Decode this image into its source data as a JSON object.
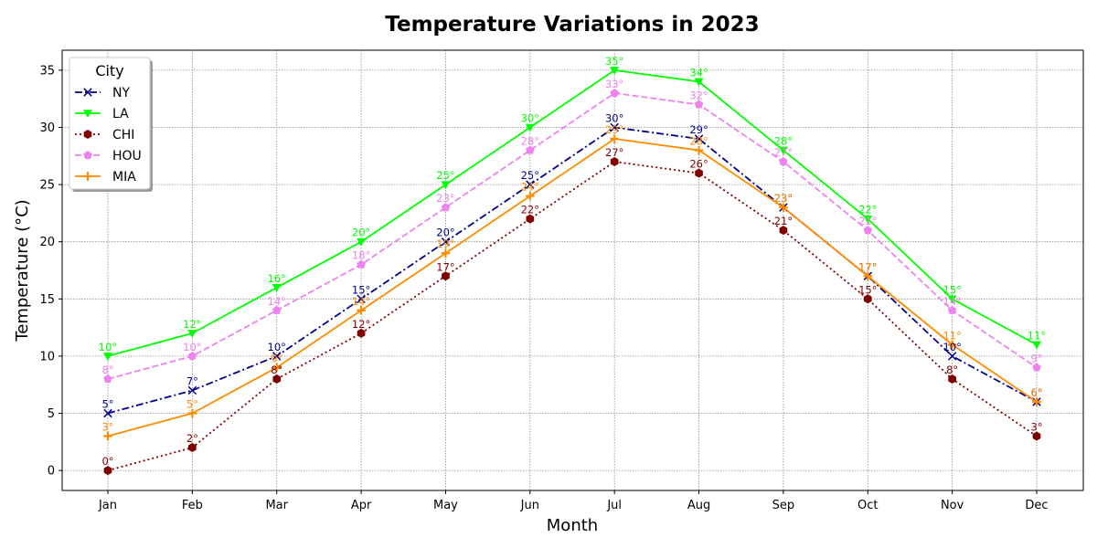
{
  "chart_data": {
    "type": "line",
    "title": "Temperature Variations in 2023",
    "xlabel": "Month",
    "ylabel": "Temperature (°C)",
    "categories": [
      "Jan",
      "Feb",
      "Mar",
      "Apr",
      "May",
      "Jun",
      "Jul",
      "Aug",
      "Sep",
      "Oct",
      "Nov",
      "Dec"
    ],
    "ylim": [
      -1.75,
      36.75
    ],
    "yticks": [
      0,
      5,
      10,
      15,
      20,
      25,
      30,
      35
    ],
    "grid": true,
    "legend": {
      "title": "City",
      "placement": "top-left"
    },
    "label_suffix": "°",
    "series": [
      {
        "name": "NY",
        "color": "#00008b",
        "dash": "dashdot",
        "marker": "x",
        "values": [
          5,
          7,
          10,
          15,
          20,
          25,
          30,
          29,
          23,
          17,
          10,
          6
        ]
      },
      {
        "name": "LA",
        "color": "#00ff00",
        "dash": "solid",
        "marker": "triangle-down",
        "values": [
          10,
          12,
          16,
          20,
          25,
          30,
          35,
          34,
          28,
          22,
          15,
          11
        ]
      },
      {
        "name": "CHI",
        "color": "#800000",
        "dash": "dotted",
        "marker": "hexagon",
        "values": [
          0,
          2,
          8,
          12,
          17,
          22,
          27,
          26,
          21,
          15,
          8,
          3
        ]
      },
      {
        "name": "HOU",
        "color": "#ee82ee",
        "dash": "dashed",
        "marker": "pentagon",
        "values": [
          8,
          10,
          14,
          18,
          23,
          28,
          33,
          32,
          27,
          21,
          14,
          9
        ]
      },
      {
        "name": "MIA",
        "color": "#ff8c00",
        "dash": "solid",
        "marker": "plus",
        "values": [
          3,
          5,
          9,
          14,
          19,
          24,
          29,
          28,
          23,
          17,
          11,
          6
        ]
      }
    ]
  }
}
